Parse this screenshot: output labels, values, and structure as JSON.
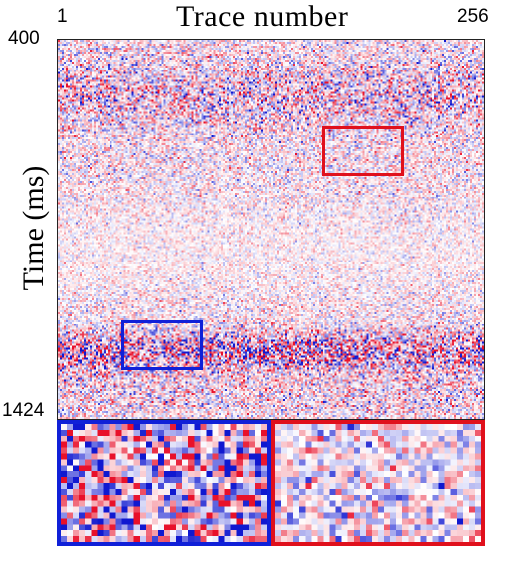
{
  "axes": {
    "x_title": "Trace number",
    "x_min_label": "1",
    "x_max_label": "256",
    "y_title": "Time (ms)",
    "y_min_label": "400",
    "y_max_label": "1424"
  },
  "colors": {
    "positive": "#e8102a",
    "negative": "#1018d0",
    "zero": "#ffffff",
    "highlight_red": "#e0101c",
    "highlight_blue": "#1020d8"
  },
  "insets": [
    {
      "name": "blue-inset",
      "color": "#1020d8"
    },
    {
      "name": "red-inset",
      "color": "#e0101c"
    }
  ]
}
